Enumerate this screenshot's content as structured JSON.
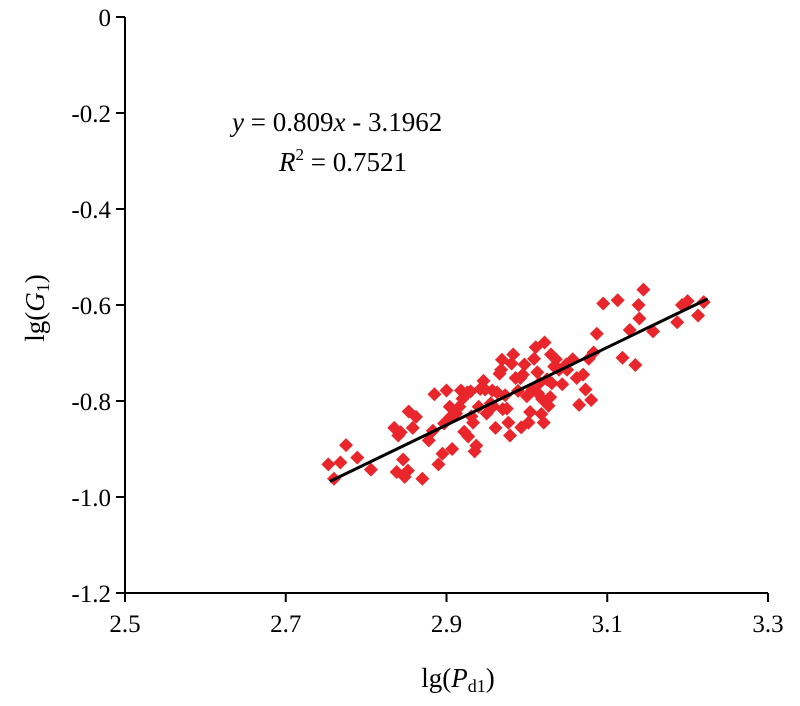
{
  "chart_data": {
    "type": "scatter",
    "xlabel_main": "lg(",
    "xlabel_var": "P",
    "xlabel_sub": "d1",
    "xlabel_close": ")",
    "ylabel_main": "lg(",
    "ylabel_var": "G",
    "ylabel_sub": "1",
    "ylabel_close": ")",
    "xlim": [
      2.5,
      3.3
    ],
    "ylim": [
      -1.2,
      0
    ],
    "x_ticks": [
      2.5,
      2.7,
      2.9,
      3.1,
      3.3
    ],
    "x_tick_labels": [
      "2.5",
      "2.7",
      "2.9",
      "3.1",
      "3.3"
    ],
    "y_ticks": [
      0,
      -0.2,
      -0.4,
      -0.6,
      -0.8,
      -1.0,
      -1.2
    ],
    "y_tick_labels": [
      "0",
      "-0.2",
      "-0.4",
      "-0.6",
      "-0.8",
      "-1.0",
      "-1.2"
    ],
    "grid": false,
    "marker_color": "#e8262b",
    "line_color": "#000000",
    "equation": {
      "y_var": "y",
      "equals_text": " = 0.809",
      "x_var": "x",
      "rest_text": " - 3.1962",
      "r_var": "R",
      "r_exp": "2",
      "r_rest": " = 0.7521"
    },
    "fit": {
      "slope": 0.809,
      "intercept": -3.1962,
      "x_range": [
        2.755,
        3.225
      ]
    },
    "points": [
      [
        2.753,
        -0.932
      ],
      [
        2.76,
        -0.962
      ],
      [
        2.768,
        -0.928
      ],
      [
        2.775,
        -0.892
      ],
      [
        2.789,
        -0.918
      ],
      [
        2.806,
        -0.943
      ],
      [
        2.835,
        -0.856
      ],
      [
        2.838,
        -0.948
      ],
      [
        2.84,
        -0.872
      ],
      [
        2.843,
        -0.865
      ],
      [
        2.846,
        -0.922
      ],
      [
        2.848,
        -0.958
      ],
      [
        2.852,
        -0.945
      ],
      [
        2.853,
        -0.822
      ],
      [
        2.858,
        -0.856
      ],
      [
        2.862,
        -0.833
      ],
      [
        2.87,
        -0.962
      ],
      [
        2.878,
        -0.882
      ],
      [
        2.883,
        -0.862
      ],
      [
        2.885,
        -0.786
      ],
      [
        2.89,
        -0.932
      ],
      [
        2.895,
        -0.91
      ],
      [
        2.897,
        -0.847
      ],
      [
        2.9,
        -0.778
      ],
      [
        2.904,
        -0.812
      ],
      [
        2.905,
        -0.833
      ],
      [
        2.907,
        -0.9
      ],
      [
        2.912,
        -0.826
      ],
      [
        2.916,
        -0.812
      ],
      [
        2.918,
        -0.778
      ],
      [
        2.92,
        -0.795
      ],
      [
        2.922,
        -0.864
      ],
      [
        2.925,
        -0.785
      ],
      [
        2.927,
        -0.874
      ],
      [
        2.93,
        -0.78
      ],
      [
        2.931,
        -0.832
      ],
      [
        2.933,
        -0.845
      ],
      [
        2.935,
        -0.905
      ],
      [
        2.937,
        -0.893
      ],
      [
        2.94,
        -0.812
      ],
      [
        2.942,
        -0.775
      ],
      [
        2.946,
        -0.758
      ],
      [
        2.948,
        -0.776
      ],
      [
        2.95,
        -0.826
      ],
      [
        2.955,
        -0.805
      ],
      [
        2.958,
        -0.811
      ],
      [
        2.961,
        -0.856
      ],
      [
        2.963,
        -0.782
      ],
      [
        2.966,
        -0.743
      ],
      [
        2.968,
        -0.735
      ],
      [
        2.97,
        -0.817
      ],
      [
        2.973,
        -0.788
      ],
      [
        2.975,
        -0.816
      ],
      [
        2.977,
        -0.845
      ],
      [
        2.979,
        -0.872
      ],
      [
        2.981,
        -0.722
      ],
      [
        2.983,
        -0.703
      ],
      [
        2.986,
        -0.752
      ],
      [
        2.989,
        -0.779
      ],
      [
        2.992,
        -0.752
      ],
      [
        2.993,
        -0.855
      ],
      [
        2.995,
        -0.745
      ],
      [
        2.997,
        -0.724
      ],
      [
        3.0,
        -0.79
      ],
      [
        3.002,
        -0.845
      ],
      [
        3.004,
        -0.823
      ],
      [
        3.007,
        -0.776
      ],
      [
        3.009,
        -0.712
      ],
      [
        3.011,
        -0.688
      ],
      [
        3.013,
        -0.74
      ],
      [
        3.014,
        -0.784
      ],
      [
        3.016,
        -0.762
      ],
      [
        3.018,
        -0.827
      ],
      [
        3.019,
        -0.796
      ],
      [
        3.021,
        -0.845
      ],
      [
        3.022,
        -0.678
      ],
      [
        3.025,
        -0.755
      ],
      [
        3.027,
        -0.81
      ],
      [
        3.029,
        -0.792
      ],
      [
        3.031,
        -0.763
      ],
      [
        3.034,
        -0.728
      ],
      [
        3.036,
        -0.713
      ],
      [
        3.04,
        -0.735
      ],
      [
        3.044,
        -0.765
      ],
      [
        3.05,
        -0.735
      ],
      [
        3.057,
        -0.713
      ],
      [
        3.062,
        -0.752
      ],
      [
        3.065,
        -0.808
      ],
      [
        3.07,
        -0.745
      ],
      [
        3.073,
        -0.776
      ],
      [
        3.077,
        -0.712
      ],
      [
        3.08,
        -0.798
      ],
      [
        3.083,
        -0.699
      ],
      [
        3.087,
        -0.66
      ],
      [
        3.095,
        -0.597
      ],
      [
        3.113,
        -0.59
      ],
      [
        3.119,
        -0.71
      ],
      [
        3.128,
        -0.652
      ],
      [
        3.135,
        -0.725
      ],
      [
        3.14,
        -0.628
      ],
      [
        3.145,
        -0.568
      ],
      [
        3.157,
        -0.655
      ],
      [
        3.187,
        -0.636
      ],
      [
        3.193,
        -0.6
      ],
      [
        3.2,
        -0.592
      ],
      [
        3.213,
        -0.622
      ],
      [
        3.22,
        -0.594
      ],
      [
        3.139,
        -0.6
      ],
      [
        2.969,
        -0.714
      ],
      [
        2.957,
        -0.778
      ],
      [
        2.926,
        -0.782
      ],
      [
        3.049,
        -0.724
      ],
      [
        3.03,
        -0.703
      ]
    ]
  }
}
